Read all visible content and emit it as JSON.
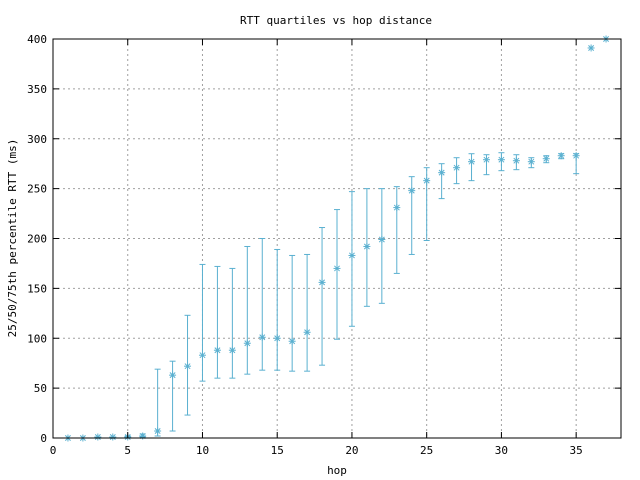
{
  "chart_data": {
    "type": "scatter",
    "title": "RTT quartiles vs hop distance",
    "xlabel": "hop",
    "ylabel": "25/50/75th percentile RTT (ms)",
    "xlim": [
      0,
      38
    ],
    "ylim": [
      0,
      400
    ],
    "xticks": [
      0,
      5,
      10,
      15,
      20,
      25,
      30,
      35
    ],
    "yticks": [
      0,
      50,
      100,
      150,
      200,
      250,
      300,
      350,
      400
    ],
    "grid": true,
    "marker_color": "#5ab0d0",
    "points": [
      {
        "x": 1,
        "low": 0,
        "median": 0,
        "high": 0
      },
      {
        "x": 2,
        "low": 0,
        "median": 0,
        "high": 0
      },
      {
        "x": 3,
        "low": 0,
        "median": 1,
        "high": 1
      },
      {
        "x": 4,
        "low": 0,
        "median": 1,
        "high": 1
      },
      {
        "x": 5,
        "low": 0,
        "median": 1,
        "high": 2
      },
      {
        "x": 6,
        "low": 1,
        "median": 2,
        "high": 4
      },
      {
        "x": 7,
        "low": 2,
        "median": 7,
        "high": 69
      },
      {
        "x": 8,
        "low": 7,
        "median": 63,
        "high": 77
      },
      {
        "x": 9,
        "low": 23,
        "median": 72,
        "high": 123
      },
      {
        "x": 10,
        "low": 57,
        "median": 83,
        "high": 174
      },
      {
        "x": 11,
        "low": 60,
        "median": 88,
        "high": 172
      },
      {
        "x": 12,
        "low": 60,
        "median": 88,
        "high": 170
      },
      {
        "x": 13,
        "low": 64,
        "median": 95,
        "high": 192
      },
      {
        "x": 14,
        "low": 68,
        "median": 101,
        "high": 200
      },
      {
        "x": 15,
        "low": 68,
        "median": 100,
        "high": 189
      },
      {
        "x": 16,
        "low": 67,
        "median": 97,
        "high": 183
      },
      {
        "x": 17,
        "low": 67,
        "median": 106,
        "high": 184
      },
      {
        "x": 18,
        "low": 73,
        "median": 156,
        "high": 211
      },
      {
        "x": 19,
        "low": 99,
        "median": 170,
        "high": 229
      },
      {
        "x": 20,
        "low": 112,
        "median": 183,
        "high": 247
      },
      {
        "x": 21,
        "low": 132,
        "median": 192,
        "high": 250
      },
      {
        "x": 22,
        "low": 135,
        "median": 199,
        "high": 250
      },
      {
        "x": 23,
        "low": 165,
        "median": 231,
        "high": 252
      },
      {
        "x": 24,
        "low": 184,
        "median": 248,
        "high": 262
      },
      {
        "x": 25,
        "low": 198,
        "median": 258,
        "high": 271
      },
      {
        "x": 26,
        "low": 240,
        "median": 266,
        "high": 275
      },
      {
        "x": 27,
        "low": 255,
        "median": 271,
        "high": 281
      },
      {
        "x": 28,
        "low": 258,
        "median": 277,
        "high": 285
      },
      {
        "x": 29,
        "low": 264,
        "median": 279,
        "high": 284
      },
      {
        "x": 30,
        "low": 268,
        "median": 279,
        "high": 286
      },
      {
        "x": 31,
        "low": 269,
        "median": 278,
        "high": 284
      },
      {
        "x": 32,
        "low": 271,
        "median": 277,
        "high": 281
      },
      {
        "x": 33,
        "low": 276,
        "median": 280,
        "high": 283
      },
      {
        "x": 34,
        "low": 280,
        "median": 283,
        "high": 285
      },
      {
        "x": 35,
        "low": 265,
        "median": 283,
        "high": 285
      },
      {
        "x": 36,
        "low": 391,
        "median": 391,
        "high": 391
      },
      {
        "x": 37,
        "low": 400,
        "median": 400,
        "high": 400
      }
    ]
  }
}
